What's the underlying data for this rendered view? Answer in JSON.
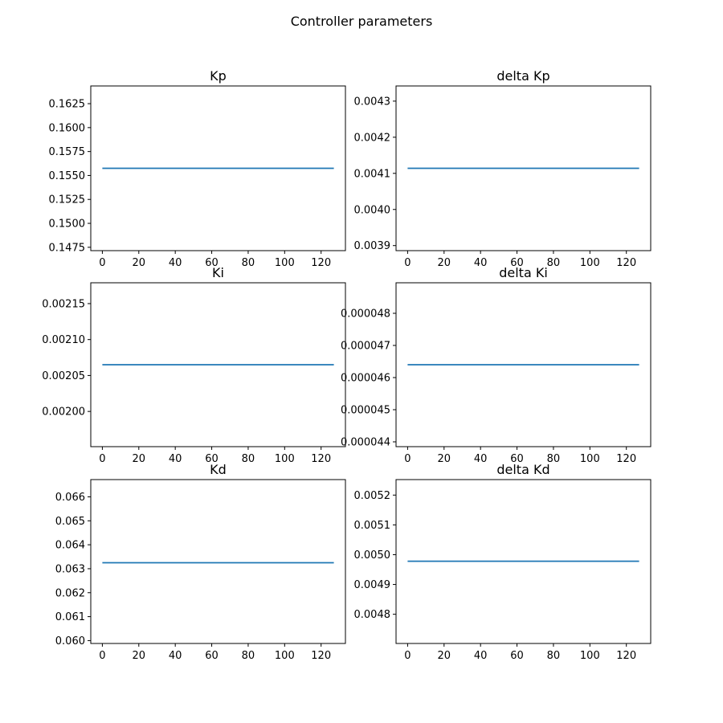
{
  "figure": {
    "title": "Controller parameters"
  },
  "chart_data": [
    {
      "type": "line",
      "title": "Kp",
      "x": [
        0,
        127
      ],
      "series": [
        {
          "values": [
            0.15575,
            0.15575
          ]
        }
      ],
      "xlim": [
        -6.35,
        133.35
      ],
      "ylim": [
        0.14715,
        0.16435
      ],
      "xticks": [
        0,
        20,
        40,
        60,
        80,
        100,
        120
      ],
      "xtick_labels": [
        "0",
        "20",
        "40",
        "60",
        "80",
        "100",
        "120"
      ],
      "yticks": [
        0.1475,
        0.15,
        0.1525,
        0.155,
        0.1575,
        0.16,
        0.1625
      ],
      "ytick_labels": [
        "0.1475",
        "0.1500",
        "0.1525",
        "0.1550",
        "0.1575",
        "0.1600",
        "0.1625"
      ],
      "line_color": "#1f77b4"
    },
    {
      "type": "line",
      "title": "delta Kp",
      "x": [
        0,
        127
      ],
      "series": [
        {
          "values": [
            0.004114,
            0.004114
          ]
        }
      ],
      "xlim": [
        -6.35,
        133.35
      ],
      "ylim": [
        0.003886,
        0.004342
      ],
      "xticks": [
        0,
        20,
        40,
        60,
        80,
        100,
        120
      ],
      "xtick_labels": [
        "0",
        "20",
        "40",
        "60",
        "80",
        "100",
        "120"
      ],
      "yticks": [
        0.0039,
        0.004,
        0.0041,
        0.0042,
        0.0043
      ],
      "ytick_labels": [
        "0.0039",
        "0.0040",
        "0.0041",
        "0.0042",
        "0.0043"
      ],
      "line_color": "#1f77b4"
    },
    {
      "type": "line",
      "title": "Ki",
      "x": [
        0,
        127
      ],
      "series": [
        {
          "values": [
            0.002065,
            0.002065
          ]
        }
      ],
      "xlim": [
        -6.35,
        133.35
      ],
      "ylim": [
        0.001951,
        0.002179
      ],
      "xticks": [
        0,
        20,
        40,
        60,
        80,
        100,
        120
      ],
      "xtick_labels": [
        "0",
        "20",
        "40",
        "60",
        "80",
        "100",
        "120"
      ],
      "yticks": [
        0.002,
        0.00205,
        0.0021,
        0.00215
      ],
      "ytick_labels": [
        "0.00200",
        "0.00205",
        "0.00210",
        "0.00215"
      ],
      "line_color": "#1f77b4"
    },
    {
      "type": "line",
      "title": "delta Ki",
      "x": [
        0,
        127
      ],
      "series": [
        {
          "values": [
            4.64e-05,
            4.64e-05
          ]
        }
      ],
      "xlim": [
        -6.35,
        133.35
      ],
      "ylim": [
        4.385e-05,
        4.895e-05
      ],
      "xticks": [
        0,
        20,
        40,
        60,
        80,
        100,
        120
      ],
      "xtick_labels": [
        "0",
        "20",
        "40",
        "60",
        "80",
        "100",
        "120"
      ],
      "yticks": [
        4.4e-05,
        4.5e-05,
        4.6e-05,
        4.7e-05,
        4.8e-05
      ],
      "ytick_labels": [
        "0.000044",
        "0.000045",
        "0.000046",
        "0.000047",
        "0.000048"
      ],
      "line_color": "#1f77b4"
    },
    {
      "type": "line",
      "title": "Kd",
      "x": [
        0,
        127
      ],
      "series": [
        {
          "values": [
            0.06325,
            0.06325
          ]
        }
      ],
      "xlim": [
        -6.35,
        133.35
      ],
      "ylim": [
        0.05988,
        0.06672
      ],
      "xticks": [
        0,
        20,
        40,
        60,
        80,
        100,
        120
      ],
      "xtick_labels": [
        "0",
        "20",
        "40",
        "60",
        "80",
        "100",
        "120"
      ],
      "yticks": [
        0.06,
        0.061,
        0.062,
        0.063,
        0.064,
        0.065,
        0.066
      ],
      "ytick_labels": [
        "0.060",
        "0.061",
        "0.062",
        "0.063",
        "0.064",
        "0.065",
        "0.066"
      ],
      "line_color": "#1f77b4"
    },
    {
      "type": "line",
      "title": "delta Kd",
      "x": [
        0,
        127
      ],
      "series": [
        {
          "values": [
            0.004978,
            0.004978
          ]
        }
      ],
      "xlim": [
        -6.35,
        133.35
      ],
      "ylim": [
        0.004702,
        0.005252
      ],
      "xticks": [
        0,
        20,
        40,
        60,
        80,
        100,
        120
      ],
      "xtick_labels": [
        "0",
        "20",
        "40",
        "60",
        "80",
        "100",
        "120"
      ],
      "yticks": [
        0.0048,
        0.0049,
        0.005,
        0.0051,
        0.0052
      ],
      "ytick_labels": [
        "0.0048",
        "0.0049",
        "0.0050",
        "0.0051",
        "0.0052"
      ],
      "line_color": "#1f77b4"
    }
  ]
}
